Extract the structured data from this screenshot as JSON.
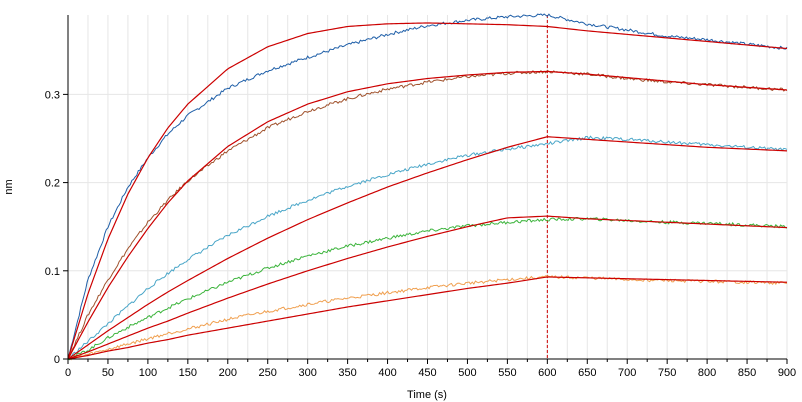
{
  "chart_data": {
    "type": "line",
    "title": "",
    "xlabel": "Time (s)",
    "ylabel": "nm",
    "xlim": [
      0,
      900
    ],
    "ylim": [
      0,
      0.39
    ],
    "x_ticks": [
      0,
      25,
      50,
      75,
      100,
      125,
      150,
      175,
      200,
      225,
      250,
      275,
      300,
      325,
      350,
      375,
      400,
      425,
      450,
      475,
      500,
      525,
      550,
      575,
      600,
      625,
      650,
      675,
      700,
      725,
      750,
      775,
      800,
      825,
      850,
      875,
      900
    ],
    "x_tick_labels": [
      0,
      50,
      100,
      150,
      200,
      250,
      300,
      350,
      400,
      450,
      500,
      550,
      600,
      650,
      700,
      750,
      800,
      850,
      900
    ],
    "y_ticks": [
      0,
      0.1,
      0.2,
      0.3
    ],
    "y_tick_labels": [
      "0",
      "0.1",
      "0.2",
      "0.3"
    ],
    "grid": true,
    "legend": "none",
    "dissociation_start": 600,
    "x": [
      0,
      25,
      50,
      75,
      100,
      125,
      150,
      200,
      250,
      300,
      350,
      400,
      450,
      500,
      550,
      600,
      650,
      700,
      750,
      800,
      850,
      900
    ],
    "series": [
      {
        "color": "#1f5fa8",
        "values": [
          0,
          0.09,
          0.15,
          0.195,
          0.228,
          0.255,
          0.276,
          0.307,
          0.327,
          0.342,
          0.356,
          0.368,
          0.378,
          0.384,
          0.388,
          0.39,
          0.38,
          0.373,
          0.366,
          0.362,
          0.357,
          0.352
        ]
      },
      {
        "color": "#a0522d",
        "values": [
          0,
          0.05,
          0.09,
          0.125,
          0.155,
          0.18,
          0.202,
          0.236,
          0.262,
          0.281,
          0.295,
          0.306,
          0.314,
          0.32,
          0.324,
          0.326,
          0.323,
          0.318,
          0.314,
          0.311,
          0.308,
          0.305
        ]
      },
      {
        "color": "#4aa6c8",
        "values": [
          0,
          0.02,
          0.04,
          0.06,
          0.08,
          0.097,
          0.113,
          0.14,
          0.162,
          0.18,
          0.196,
          0.209,
          0.221,
          0.231,
          0.238,
          0.244,
          0.251,
          0.249,
          0.246,
          0.243,
          0.24,
          0.237
        ]
      },
      {
        "color": "#3cb43c",
        "values": [
          0,
          0.01,
          0.024,
          0.036,
          0.047,
          0.058,
          0.068,
          0.087,
          0.103,
          0.117,
          0.128,
          0.137,
          0.145,
          0.151,
          0.155,
          0.158,
          0.159,
          0.157,
          0.155,
          0.154,
          0.152,
          0.15
        ]
      },
      {
        "color": "#f0a050",
        "values": [
          0,
          0.005,
          0.011,
          0.017,
          0.023,
          0.029,
          0.034,
          0.045,
          0.054,
          0.062,
          0.069,
          0.075,
          0.081,
          0.086,
          0.09,
          0.093,
          0.092,
          0.09,
          0.089,
          0.088,
          0.087,
          0.086
        ]
      }
    ],
    "fits": [
      {
        "color": "#cc0000",
        "values": [
          0,
          0.074,
          0.136,
          0.187,
          0.228,
          0.262,
          0.289,
          0.329,
          0.354,
          0.369,
          0.377,
          0.38,
          0.381,
          0.38,
          0.379,
          0.377,
          0.372,
          0.368,
          0.364,
          0.36,
          0.356,
          0.352
        ]
      },
      {
        "color": "#cc0000",
        "values": [
          0,
          0.042,
          0.081,
          0.116,
          0.148,
          0.177,
          0.202,
          0.241,
          0.269,
          0.289,
          0.303,
          0.312,
          0.318,
          0.322,
          0.325,
          0.326,
          0.323,
          0.319,
          0.315,
          0.311,
          0.308,
          0.305
        ]
      },
      {
        "color": "#cc0000",
        "values": [
          0,
          0.016,
          0.032,
          0.047,
          0.062,
          0.076,
          0.089,
          0.114,
          0.137,
          0.158,
          0.177,
          0.195,
          0.211,
          0.226,
          0.24,
          0.252,
          0.249,
          0.246,
          0.243,
          0.24,
          0.238,
          0.236
        ]
      },
      {
        "color": "#cc0000",
        "values": [
          0,
          0.008,
          0.017,
          0.026,
          0.035,
          0.043,
          0.052,
          0.069,
          0.085,
          0.1,
          0.114,
          0.127,
          0.139,
          0.15,
          0.16,
          0.162,
          0.159,
          0.157,
          0.155,
          0.153,
          0.151,
          0.149
        ]
      },
      {
        "color": "#cc0000",
        "values": [
          0,
          0.004,
          0.009,
          0.013,
          0.018,
          0.022,
          0.027,
          0.035,
          0.043,
          0.051,
          0.059,
          0.066,
          0.073,
          0.08,
          0.086,
          0.093,
          0.092,
          0.091,
          0.09,
          0.089,
          0.088,
          0.087
        ]
      }
    ]
  }
}
